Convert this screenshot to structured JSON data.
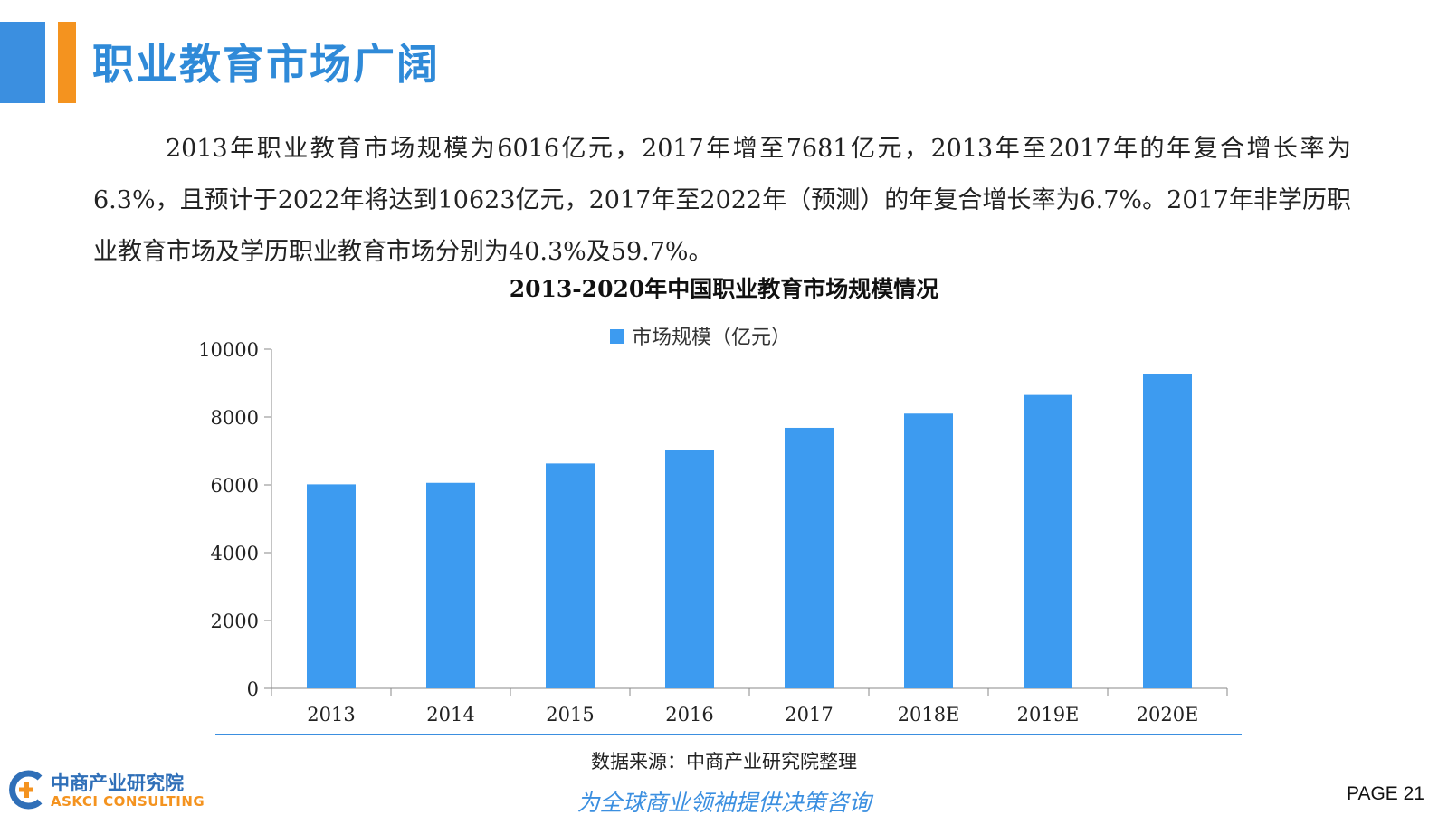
{
  "header": {
    "title": "职业教育市场广阔",
    "accent_blue": "#3b8fe0",
    "accent_orange": "#f4931f"
  },
  "paragraph": "2013年职业教育市场规模为6016亿元，2017年增至7681亿元，2013年至2017年的年复合增长率为6.3%，且预计于2022年将达到10623亿元，2017年至2022年（预测）的年复合增长率为6.7%。2017年非学历职业教育市场及学历职业教育市场分别为40.3%及59.7%。",
  "chart_data": {
    "type": "bar",
    "title": "2013-2020年中国职业教育市场规模情况",
    "categories": [
      "2013",
      "2014",
      "2015",
      "2016",
      "2017",
      "2018E",
      "2019E",
      "2020E"
    ],
    "series": [
      {
        "name": "市场规模（亿元）",
        "values": [
          6016,
          6060,
          6630,
          7020,
          7681,
          8100,
          8650,
          9270
        ],
        "color": "#3d9bf0"
      }
    ],
    "yticks": [
      "0",
      "2000",
      "4000",
      "6000",
      "8000",
      "10000"
    ],
    "ylim": [
      0,
      10000
    ],
    "xlabel": "",
    "ylabel": "",
    "legend_position": "top-center",
    "grid": false
  },
  "footer": {
    "source": "数据来源：中商产业研究院整理",
    "slogan": "为全球商业领袖提供决策咨询",
    "logo_cn": "中商产业研究院",
    "logo_en": "ASKCI CONSULTING",
    "page_label": "PAGE  21"
  }
}
